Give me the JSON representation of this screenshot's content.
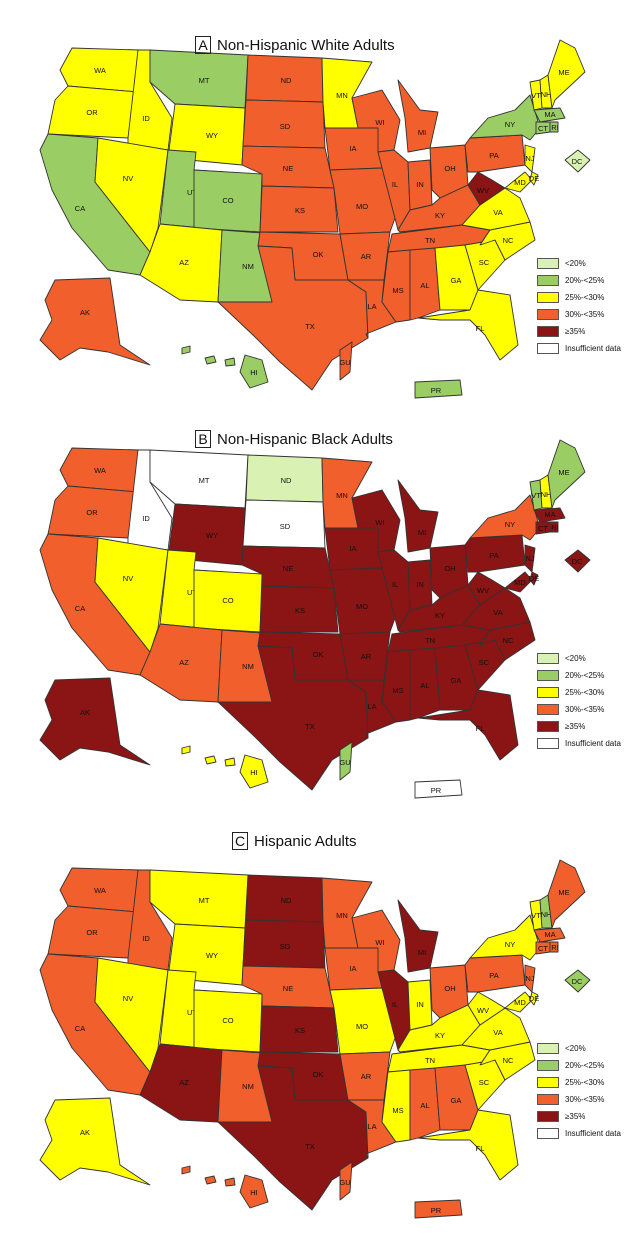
{
  "colors": {
    "lt20": "#d9f2b4",
    "c20_25": "#9acd63",
    "c25_30": "#ffff00",
    "c30_35": "#f05f2c",
    "ge35": "#8b1414",
    "insufficient": "#ffffff",
    "border": "#333333"
  },
  "legend": [
    {
      "key": "lt20",
      "label": "<20%"
    },
    {
      "key": "c20_25",
      "label": "20%-<25%"
    },
    {
      "key": "c25_30",
      "label": "25%-<30%"
    },
    {
      "key": "c30_35",
      "label": "30%-<35%"
    },
    {
      "key": "ge35",
      "label": "≥35%"
    },
    {
      "key": "insufficient",
      "label": "Insufficient data"
    }
  ],
  "panels": [
    {
      "letter": "A",
      "title": "Non-Hispanic White Adults",
      "states": {
        "WA": "c25_30",
        "OR": "c25_30",
        "CA": "c20_25",
        "ID": "c25_30",
        "NV": "c25_30",
        "MT": "c20_25",
        "WY": "c25_30",
        "UT": "c20_25",
        "CO": "c20_25",
        "AZ": "c25_30",
        "NM": "c20_25",
        "ND": "c30_35",
        "SD": "c30_35",
        "NE": "c30_35",
        "KS": "c30_35",
        "OK": "c30_35",
        "TX": "c30_35",
        "MN": "c25_30",
        "IA": "c30_35",
        "MO": "c30_35",
        "AR": "c30_35",
        "LA": "c30_35",
        "WI": "c30_35",
        "IL": "c30_35",
        "MI": "c30_35",
        "IN": "c30_35",
        "OH": "c30_35",
        "KY": "c30_35",
        "TN": "c30_35",
        "MS": "c30_35",
        "AL": "c30_35",
        "GA": "c25_30",
        "FL": "c25_30",
        "SC": "c25_30",
        "NC": "c25_30",
        "VA": "c25_30",
        "WV": "ge35",
        "PA": "c30_35",
        "NY": "c20_25",
        "NJ": "c25_30",
        "MD": "c25_30",
        "DE": "c25_30",
        "VT": "c25_30",
        "NH": "c25_30",
        "ME": "c25_30",
        "MA": "c20_25",
        "CT": "c20_25",
        "RI": "c20_25",
        "DC": "lt20",
        "AK": "c30_35",
        "HI": "c20_25",
        "GU": "c30_35",
        "PR": "c20_25"
      }
    },
    {
      "letter": "B",
      "title": "Non-Hispanic Black Adults",
      "states": {
        "WA": "c30_35",
        "OR": "c30_35",
        "CA": "c30_35",
        "ID": "insufficient",
        "NV": "c25_30",
        "MT": "insufficient",
        "WY": "ge35",
        "UT": "c25_30",
        "CO": "c25_30",
        "AZ": "c30_35",
        "NM": "c30_35",
        "ND": "lt20",
        "SD": "insufficient",
        "NE": "ge35",
        "KS": "ge35",
        "OK": "ge35",
        "TX": "ge35",
        "MN": "c30_35",
        "IA": "ge35",
        "MO": "ge35",
        "AR": "ge35",
        "LA": "ge35",
        "WI": "ge35",
        "IL": "ge35",
        "MI": "ge35",
        "IN": "ge35",
        "OH": "ge35",
        "KY": "ge35",
        "TN": "ge35",
        "MS": "ge35",
        "AL": "ge35",
        "GA": "ge35",
        "FL": "ge35",
        "SC": "ge35",
        "NC": "ge35",
        "VA": "ge35",
        "WV": "ge35",
        "PA": "ge35",
        "NY": "c30_35",
        "NJ": "ge35",
        "MD": "ge35",
        "DE": "ge35",
        "VT": "c20_25",
        "NH": "c25_30",
        "ME": "c20_25",
        "MA": "ge35",
        "CT": "ge35",
        "RI": "ge35",
        "DC": "ge35",
        "AK": "ge35",
        "HI": "c25_30",
        "GU": "c20_25",
        "PR": "insufficient"
      }
    },
    {
      "letter": "C",
      "title": "Hispanic Adults",
      "states": {
        "WA": "c30_35",
        "OR": "c30_35",
        "CA": "c30_35",
        "ID": "c30_35",
        "NV": "c25_30",
        "MT": "c25_30",
        "WY": "c25_30",
        "UT": "c25_30",
        "CO": "c25_30",
        "AZ": "ge35",
        "NM": "c30_35",
        "ND": "ge35",
        "SD": "ge35",
        "NE": "c30_35",
        "KS": "ge35",
        "OK": "ge35",
        "TX": "ge35",
        "MN": "c30_35",
        "IA": "c30_35",
        "MO": "c25_30",
        "AR": "c30_35",
        "LA": "c30_35",
        "WI": "c30_35",
        "IL": "ge35",
        "MI": "ge35",
        "IN": "c25_30",
        "OH": "c30_35",
        "KY": "c25_30",
        "TN": "c25_30",
        "MS": "c25_30",
        "AL": "c30_35",
        "GA": "c30_35",
        "FL": "c25_30",
        "SC": "c25_30",
        "NC": "c25_30",
        "VA": "c25_30",
        "WV": "c25_30",
        "PA": "c30_35",
        "NY": "c25_30",
        "NJ": "c30_35",
        "MD": "c25_30",
        "DE": "c25_30",
        "VT": "c25_30",
        "NH": "c20_25",
        "ME": "c30_35",
        "MA": "c30_35",
        "CT": "c30_35",
        "RI": "c30_35",
        "DC": "c20_25",
        "AK": "c25_30",
        "HI": "c30_35",
        "GU": "c30_35",
        "PR": "c30_35"
      }
    }
  ]
}
